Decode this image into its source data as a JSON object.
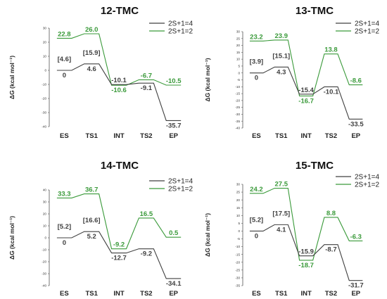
{
  "colors": {
    "quartet": "#404040",
    "doublet": "#3a9a3a",
    "axis": "#555555"
  },
  "chart_data": [
    {
      "type": "line",
      "title": "12-TMC",
      "ylabel": "ΔG (kcal mol⁻¹)",
      "categories": [
        "ES",
        "TS1",
        "INT",
        "TS2",
        "EP"
      ],
      "ylim": [
        -40,
        30
      ],
      "yticks": [
        30,
        20,
        10,
        0,
        -10,
        -20,
        -30,
        -40
      ],
      "legend_position": "top-right",
      "grid": false,
      "series": [
        {
          "name": "2S+1=4",
          "color": "quartet",
          "values": [
            0,
            4.6,
            -10.1,
            -9.1,
            -35.7
          ],
          "labels": [
            "0",
            "4.6",
            "-10.1",
            "-9.1",
            "-35.7"
          ]
        },
        {
          "name": "2S+1=2",
          "color": "doublet",
          "values": [
            22.8,
            26.0,
            -10.6,
            -6.7,
            -10.5
          ],
          "labels": [
            "22.8",
            "26.0",
            "-10.6",
            "-6.7",
            "-10.5"
          ]
        }
      ],
      "annotations": [
        {
          "text": "[4.6]",
          "category": "ES"
        },
        {
          "text": "[15.9]",
          "category": "TS1"
        }
      ]
    },
    {
      "type": "line",
      "title": "13-TMC",
      "ylabel": "ΔG (kcal mol⁻¹)",
      "categories": [
        "ES",
        "TS1",
        "INT",
        "TS2",
        "EP"
      ],
      "ylim": [
        -40,
        30
      ],
      "yticks": [
        30,
        25,
        20,
        15,
        10,
        5,
        0,
        -5,
        -10,
        -15,
        -20,
        -25,
        -30,
        -35,
        -40
      ],
      "legend_position": "top-right",
      "grid": false,
      "series": [
        {
          "name": "2S+1=4",
          "color": "quartet",
          "values": [
            0,
            4.3,
            -15.4,
            -10.1,
            -33.5
          ],
          "labels": [
            "0",
            "4.3",
            "-15.4",
            "-10.1",
            "-33.5"
          ]
        },
        {
          "name": "2S+1=2",
          "color": "doublet",
          "values": [
            23.2,
            23.9,
            -16.7,
            13.8,
            -8.6
          ],
          "labels": [
            "23.2",
            "23.9",
            "-16.7",
            "13.8",
            "-8.6"
          ]
        }
      ],
      "annotations": [
        {
          "text": "[3.9]",
          "category": "ES"
        },
        {
          "text": "[15.1]",
          "category": "TS1"
        }
      ]
    },
    {
      "type": "line",
      "title": "14-TMC",
      "ylabel": "ΔG (kcal mol⁻¹)",
      "categories": [
        "ES",
        "TS1",
        "INT",
        "TS2",
        "EP"
      ],
      "ylim": [
        -40,
        40
      ],
      "yticks": [
        40,
        30,
        20,
        10,
        0,
        -10,
        -20,
        -30,
        -40
      ],
      "legend_position": "top-right",
      "grid": false,
      "series": [
        {
          "name": "2S+1=4",
          "color": "quartet",
          "values": [
            0,
            5.2,
            -12.7,
            -9.2,
            -34.1
          ],
          "labels": [
            "0",
            "5.2",
            "-12.7",
            "-9.2",
            "-34.1"
          ]
        },
        {
          "name": "2S+1=2",
          "color": "doublet",
          "values": [
            33.3,
            36.7,
            -9.2,
            16.5,
            0.5
          ],
          "labels": [
            "33.3",
            "36.7",
            "-9.2",
            "16.5",
            "0.5"
          ]
        }
      ],
      "annotations": [
        {
          "text": "[5.2]",
          "category": "ES"
        },
        {
          "text": "[16.6]",
          "category": "TS1"
        }
      ]
    },
    {
      "type": "line",
      "title": "15-TMC",
      "ylabel": "ΔG (kcal mol⁻¹)",
      "categories": [
        "ES",
        "TS1",
        "INT",
        "TS2",
        "EP"
      ],
      "ylim": [
        -35,
        30
      ],
      "yticks": [
        30,
        25,
        20,
        15,
        10,
        5,
        0,
        -5,
        -10,
        -15,
        -20,
        -25,
        -30,
        -35
      ],
      "legend_position": "top-right",
      "grid": false,
      "series": [
        {
          "name": "2S+1=4",
          "color": "quartet",
          "values": [
            0,
            4.1,
            -15.9,
            -8.7,
            -31.7
          ],
          "labels": [
            "0",
            "4.1",
            "-15.9",
            "-8.7",
            "-31.7"
          ]
        },
        {
          "name": "2S+1=2",
          "color": "doublet",
          "values": [
            24.2,
            27.5,
            -18.7,
            8.8,
            -6.3
          ],
          "labels": [
            "24.2",
            "27.5",
            "-18.7",
            "8.8",
            "-6.3"
          ]
        }
      ],
      "annotations": [
        {
          "text": "[5.2]",
          "category": "ES"
        },
        {
          "text": "[17.5]",
          "category": "TS1"
        }
      ]
    }
  ]
}
